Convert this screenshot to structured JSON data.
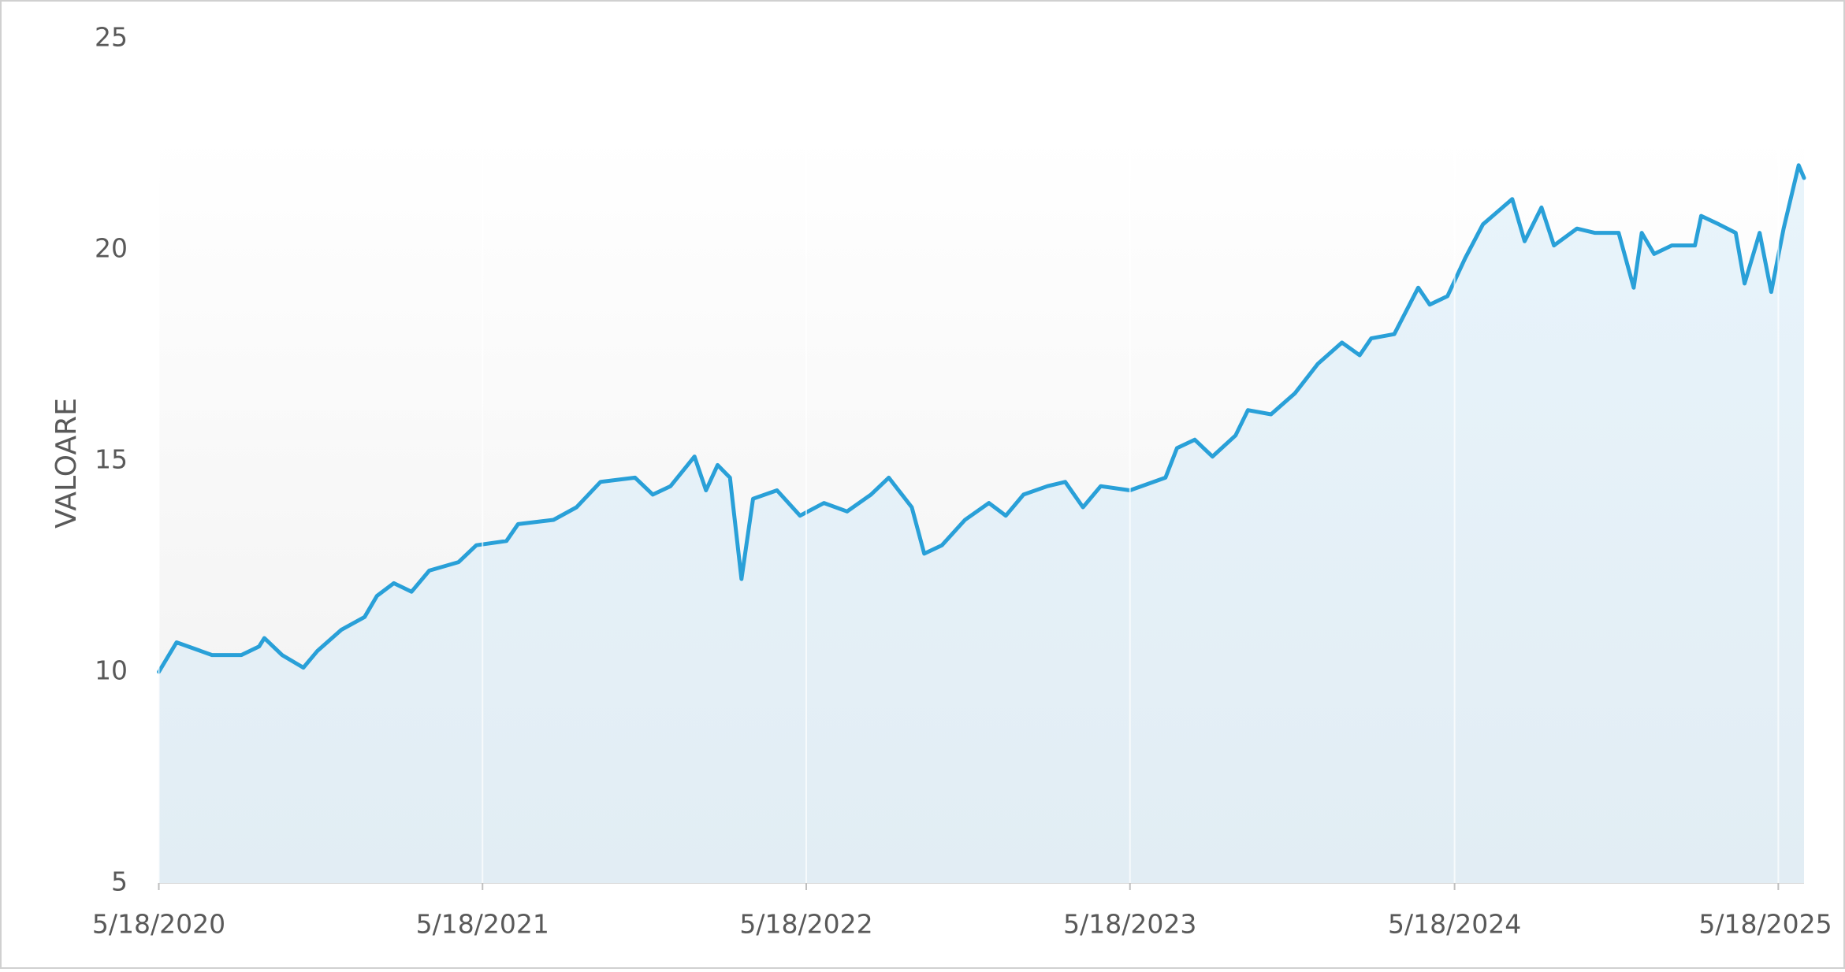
{
  "chart_data": {
    "type": "area",
    "y_label": "VALOARE",
    "x": [
      "5/18/2020",
      "6/7/2020",
      "7/17/2020",
      "8/19/2020",
      "9/8/2020",
      "9/14/2020",
      "10/4/2020",
      "10/28/2020",
      "11/13/2020",
      "12/10/2020",
      "1/5/2021",
      "1/19/2021",
      "2/7/2021",
      "2/27/2021",
      "3/19/2021",
      "4/21/2021",
      "5/11/2021",
      "6/14/2021",
      "6/27/2021",
      "8/6/2021",
      "9/1/2021",
      "9/28/2021",
      "11/6/2021",
      "11/26/2021",
      "12/16/2021",
      "1/12/2022",
      "1/25/2022",
      "2/7/2022",
      "2/21/2022",
      "3/6/2022",
      "3/19/2022",
      "4/15/2022",
      "5/11/2022",
      "6/7/2022",
      "7/3/2022",
      "7/30/2022",
      "8/19/2022",
      "9/14/2022",
      "9/28/2022",
      "10/18/2022",
      "11/13/2022",
      "12/10/2022",
      "12/29/2022",
      "1/18/2023",
      "2/14/2023",
      "3/6/2023",
      "3/26/2023",
      "4/15/2023",
      "5/18/2023",
      "6/27/2023",
      "7/10/2023",
      "7/30/2023",
      "8/19/2023",
      "9/14/2023",
      "9/28/2023",
      "10/24/2023",
      "11/20/2023",
      "12/16/2023",
      "1/12/2024",
      "2/1/2024",
      "2/14/2024",
      "3/11/2024",
      "4/7/2024",
      "4/20/2024",
      "5/10/2024",
      "5/30/2024",
      "6/19/2024",
      "7/22/2024",
      "8/5/2024",
      "8/24/2024",
      "9/7/2024",
      "10/3/2024",
      "10/23/2024",
      "11/19/2024",
      "12/6/2024",
      "12/15/2024",
      "12/29/2024",
      "1/18/2025",
      "2/13/2025",
      "2/20/2025",
      "3/12/2025",
      "3/31/2025",
      "4/10/2025",
      "4/27/2025",
      "5/10/2025",
      "5/24/2025",
      "6/10/2025",
      "6/16/2025"
    ],
    "series": [
      {
        "color": "#29a0d8",
        "values": [
          10.0,
          10.7,
          10.4,
          10.4,
          10.6,
          10.8,
          10.4,
          10.1,
          10.5,
          11.0,
          11.3,
          11.8,
          12.1,
          11.9,
          12.4,
          12.6,
          13.0,
          13.1,
          13.5,
          13.6,
          13.9,
          14.5,
          14.6,
          14.2,
          14.4,
          15.1,
          14.3,
          14.9,
          14.6,
          12.2,
          14.1,
          14.3,
          13.7,
          14.0,
          13.8,
          14.2,
          14.6,
          13.9,
          12.8,
          13.0,
          13.6,
          14.0,
          13.7,
          14.2,
          14.4,
          14.5,
          13.9,
          14.4,
          14.3,
          14.6,
          15.3,
          15.5,
          15.1,
          15.6,
          16.2,
          16.1,
          16.6,
          17.3,
          17.8,
          17.5,
          17.9,
          18.0,
          19.1,
          18.7,
          18.9,
          19.8,
          20.6,
          21.2,
          20.2,
          21.0,
          20.1,
          20.5,
          20.4,
          20.4,
          19.1,
          20.4,
          19.9,
          20.1,
          20.1,
          20.8,
          20.6,
          20.4,
          19.2,
          20.4,
          19.0,
          20.5,
          22.0,
          21.7
        ]
      }
    ],
    "xlim": [
      "5/18/2020",
      "6/16/2025"
    ],
    "xticks": [
      "5/18/2020",
      "5/18/2021",
      "5/18/2022",
      "5/18/2023",
      "5/18/2024",
      "5/18/2025"
    ],
    "ylim": [
      5,
      25
    ],
    "yticks": [
      5,
      10,
      15,
      20,
      25
    ]
  }
}
